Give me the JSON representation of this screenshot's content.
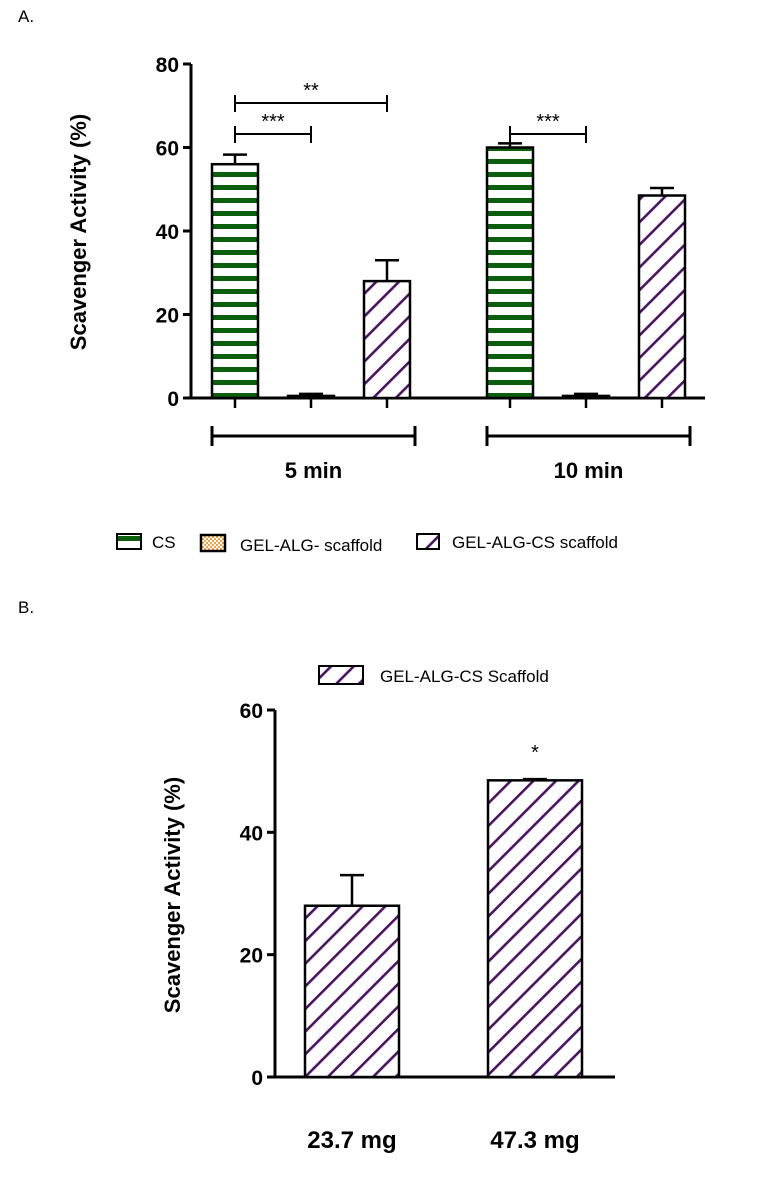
{
  "colors": {
    "cs": "#0b5e0b",
    "gel_alg": "#f5a040",
    "gel_alg_cs": "#4b1463",
    "axis": "#000000"
  },
  "chart_data": [
    {
      "panel_label": "A.",
      "type": "bar",
      "ylabel": "Scavenger Activity (%)",
      "ylim": [
        0,
        80
      ],
      "yticks": [
        "0",
        "20",
        "40",
        "60",
        "80"
      ],
      "categories": [
        "5 min",
        "10 min"
      ],
      "series": [
        {
          "name": "CS",
          "values": [
            56,
            60
          ],
          "errors": [
            2.3,
            1.0
          ]
        },
        {
          "name": "GEL-ALG- scaffold",
          "values": [
            0.5,
            0.5
          ],
          "errors": [
            0.5,
            0.5
          ]
        },
        {
          "name": "GEL-ALG-CS scaffold",
          "values": [
            28,
            48.5
          ],
          "errors": [
            5,
            1.8
          ]
        }
      ],
      "significance": [
        {
          "group": 0,
          "from": 0,
          "to": 1,
          "label": "***"
        },
        {
          "group": 0,
          "from": 0,
          "to": 2,
          "label": "**"
        },
        {
          "group": 1,
          "from": 0,
          "to": 1,
          "label": "***"
        }
      ],
      "legend_position": "bottom"
    },
    {
      "panel_label": "B.",
      "type": "bar",
      "ylabel": "Scavenger Activity (%)",
      "ylim": [
        0,
        60
      ],
      "yticks": [
        "0",
        "20",
        "40",
        "60"
      ],
      "categories": [
        "23.7 mg",
        "47.3 mg"
      ],
      "series": [
        {
          "name": "GEL-ALG-CS Scaffold",
          "values": [
            28,
            48.5
          ],
          "errors": [
            5,
            0.2
          ]
        }
      ],
      "annotations": [
        {
          "bar": 1,
          "label": "*"
        }
      ],
      "legend_position": "top"
    }
  ]
}
